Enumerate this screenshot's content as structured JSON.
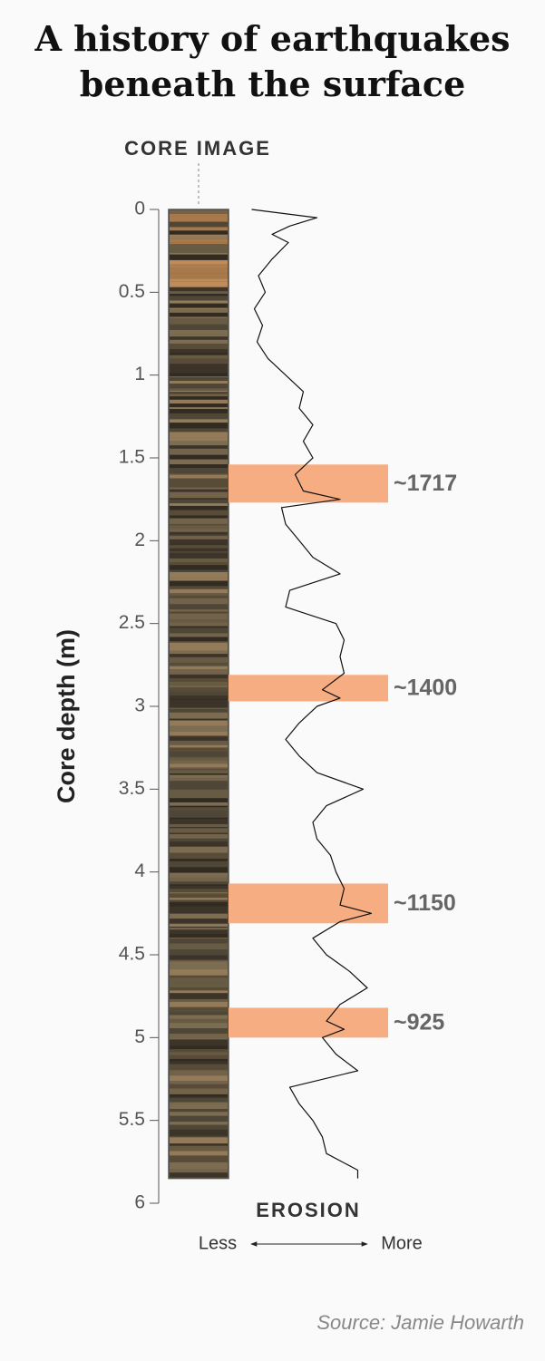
{
  "chart_data": {
    "type": "line",
    "title": "A history of earthquakes beneath the surface",
    "core_label": "CORE IMAGE",
    "y_label": "Core depth (m)",
    "x_label": "EROSION",
    "x_low": "Less",
    "x_high": "More",
    "source": "Source: Jamie Howarth",
    "ylim": [
      0,
      6
    ],
    "yticks": [
      0,
      0.5,
      1,
      1.5,
      2,
      2.5,
      3,
      3.5,
      4,
      4.5,
      5,
      5.5,
      6
    ],
    "xlim": [
      0,
      100
    ],
    "color": "#111111",
    "depth": [
      0,
      0.05,
      0.1,
      0.15,
      0.2,
      0.3,
      0.4,
      0.5,
      0.6,
      0.7,
      0.8,
      0.9,
      1.0,
      1.1,
      1.2,
      1.3,
      1.4,
      1.5,
      1.6,
      1.7,
      1.75,
      1.8,
      1.9,
      2.0,
      2.1,
      2.2,
      2.3,
      2.4,
      2.5,
      2.6,
      2.7,
      2.8,
      2.9,
      2.95,
      3.0,
      3.1,
      3.2,
      3.3,
      3.4,
      3.5,
      3.6,
      3.7,
      3.8,
      3.9,
      4.0,
      4.1,
      4.2,
      4.25,
      4.3,
      4.4,
      4.5,
      4.6,
      4.7,
      4.8,
      4.9,
      4.95,
      5.0,
      5.1,
      5.2,
      5.3,
      5.4,
      5.5,
      5.6,
      5.7,
      5.8,
      5.85
    ],
    "values": [
      5,
      53,
      33,
      20,
      32,
      20,
      10,
      15,
      7,
      13,
      9,
      17,
      30,
      43,
      40,
      50,
      43,
      50,
      37,
      43,
      70,
      27,
      30,
      40,
      50,
      70,
      33,
      30,
      67,
      73,
      70,
      73,
      57,
      70,
      53,
      40,
      30,
      40,
      53,
      87,
      60,
      50,
      53,
      63,
      67,
      73,
      70,
      93,
      70,
      50,
      60,
      77,
      90,
      70,
      60,
      73,
      57,
      67,
      83,
      33,
      40,
      50,
      57,
      60,
      83,
      83
    ],
    "core_depth": 5.85,
    "band_color": "#f7ad82",
    "bands": [
      {
        "label": "~1717",
        "from": 1.54,
        "to": 1.77
      },
      {
        "label": "~1400",
        "from": 2.81,
        "to": 2.97
      },
      {
        "label": "~1150",
        "from": 4.07,
        "to": 4.31
      },
      {
        "label": "~925",
        "from": 4.82,
        "to": 5.0
      }
    ]
  }
}
